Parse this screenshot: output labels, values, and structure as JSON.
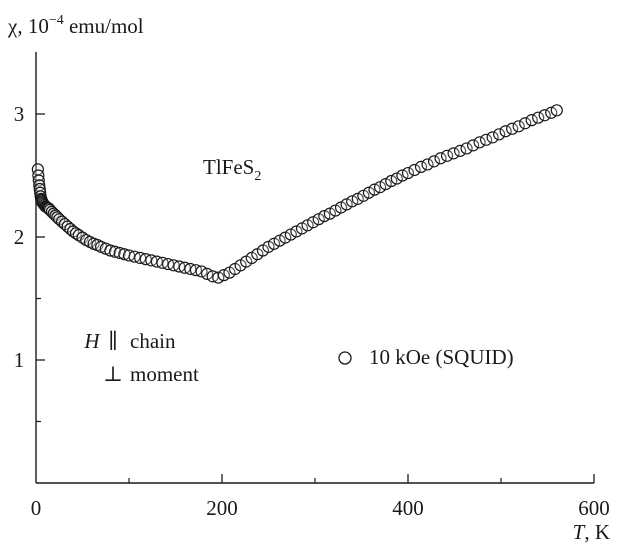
{
  "chart_data": {
    "type": "scatter",
    "title": "",
    "ylabel": {
      "symbol": "χ",
      "prefix": ", 10",
      "exponent": "−4",
      "unit": " emu/mol"
    },
    "xlabel": {
      "symbol": "T",
      "unit": ", K"
    },
    "xlim": [
      0,
      600
    ],
    "ylim": [
      0,
      3.6
    ],
    "x_ticks": [
      0,
      200,
      400,
      600
    ],
    "x_tick_labels": [
      "0",
      "200",
      "400",
      "600"
    ],
    "x_minor_ticks": [
      100,
      300,
      500
    ],
    "y_ticks": [
      1,
      2,
      3
    ],
    "y_tick_labels": [
      "1",
      "2",
      "3"
    ],
    "y_minor_ticks": [
      0.5,
      1.5,
      2.5
    ],
    "grid": false,
    "compound": {
      "base": "TlFeS",
      "subscript": "2"
    },
    "field_annotation": {
      "line1_symbol": "H",
      "line1_rel": "∥",
      "line1_text": "chain",
      "line2_rel": "⊥",
      "line2_text": "moment"
    },
    "legend": {
      "position": "right-middle",
      "marker": "open-circle"
    },
    "series": [
      {
        "name": "10 kOe (SQUID)",
        "marker": "open-circle",
        "color": "#1a1a1a",
        "x": [
          2,
          2.5,
          3,
          3.5,
          4,
          4.5,
          5,
          5.5,
          6,
          6.5,
          7,
          8,
          9,
          10,
          11,
          12,
          13,
          14,
          15,
          17,
          19,
          21,
          23,
          25,
          28,
          31,
          34,
          37,
          40,
          43,
          46,
          50,
          54,
          58,
          62,
          66,
          70,
          75,
          80,
          85,
          90,
          95,
          100,
          106,
          112,
          118,
          124,
          130,
          136,
          142,
          148,
          154,
          160,
          166,
          172,
          178,
          184,
          190,
          196,
          202,
          208,
          214,
          220,
          226,
          232,
          238,
          244,
          250,
          256,
          262,
          268,
          274,
          280,
          286,
          292,
          298,
          304,
          310,
          316,
          322,
          328,
          334,
          340,
          346,
          352,
          358,
          364,
          370,
          376,
          382,
          388,
          394,
          400,
          407,
          414,
          421,
          428,
          435,
          442,
          449,
          456,
          463,
          470,
          477,
          484,
          491,
          498,
          505,
          512,
          519,
          526,
          533,
          540,
          547,
          554,
          560
        ],
        "y": [
          2.55,
          2.5,
          2.46,
          2.42,
          2.39,
          2.36,
          2.33,
          2.31,
          2.3,
          2.29,
          2.28,
          2.27,
          2.26,
          2.25,
          2.245,
          2.24,
          2.235,
          2.23,
          2.22,
          2.205,
          2.19,
          2.175,
          2.16,
          2.145,
          2.125,
          2.105,
          2.085,
          2.065,
          2.045,
          2.03,
          2.015,
          1.995,
          1.975,
          1.96,
          1.945,
          1.935,
          1.92,
          1.905,
          1.89,
          1.88,
          1.87,
          1.86,
          1.85,
          1.84,
          1.83,
          1.82,
          1.81,
          1.8,
          1.79,
          1.78,
          1.77,
          1.76,
          1.75,
          1.74,
          1.73,
          1.72,
          1.7,
          1.68,
          1.67,
          1.69,
          1.71,
          1.74,
          1.77,
          1.8,
          1.83,
          1.86,
          1.89,
          1.92,
          1.945,
          1.97,
          1.995,
          2.02,
          2.045,
          2.07,
          2.095,
          2.12,
          2.145,
          2.17,
          2.19,
          2.215,
          2.24,
          2.265,
          2.29,
          2.31,
          2.335,
          2.36,
          2.385,
          2.405,
          2.43,
          2.455,
          2.475,
          2.5,
          2.52,
          2.545,
          2.57,
          2.59,
          2.615,
          2.64,
          2.66,
          2.68,
          2.7,
          2.72,
          2.745,
          2.77,
          2.79,
          2.81,
          2.835,
          2.86,
          2.88,
          2.9,
          2.925,
          2.95,
          2.97,
          2.99,
          3.01,
          3.03
        ]
      }
    ]
  }
}
